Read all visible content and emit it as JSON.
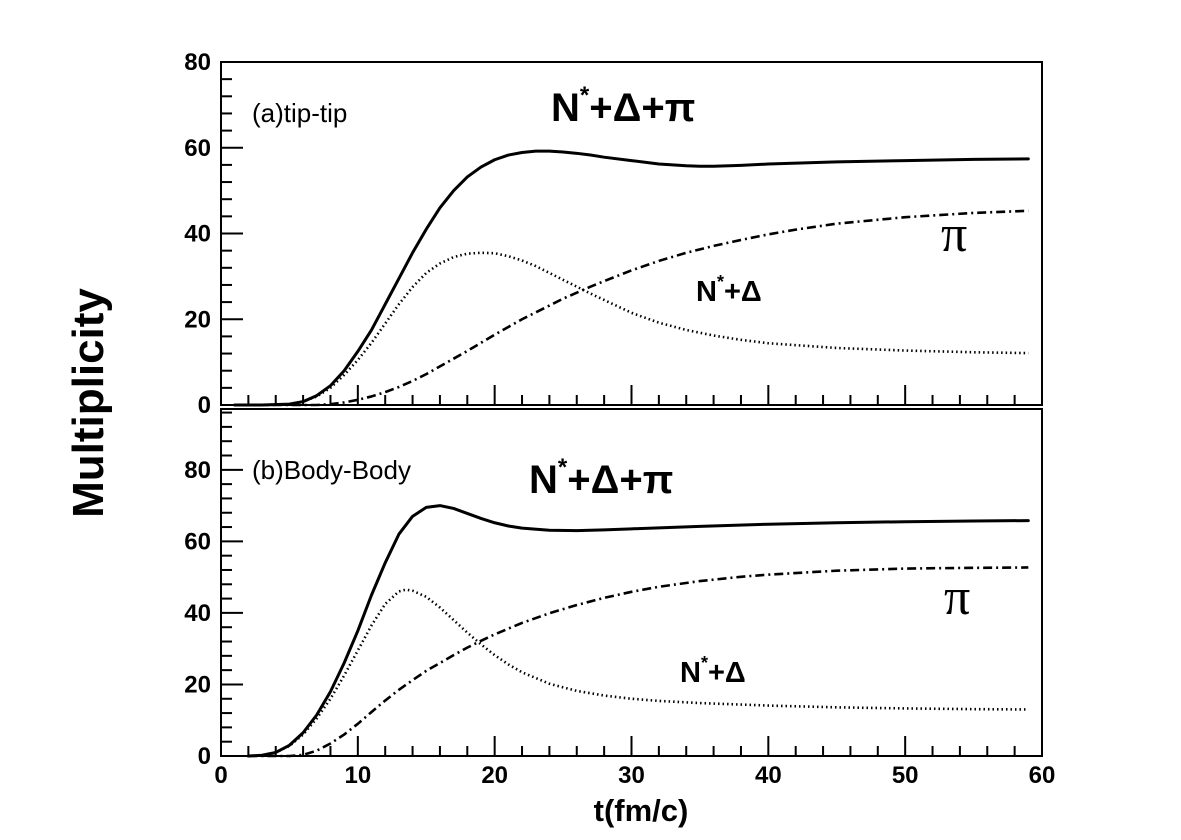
{
  "chart_data": {
    "type": "line",
    "ylabel": "Multiplicity",
    "xlabel": "t(fm/c)",
    "xlim": [
      0,
      60
    ],
    "x_ticks": [
      "0",
      "10",
      "20",
      "30",
      "40",
      "50",
      "60"
    ],
    "style": {
      "line_color": "#000000",
      "series_dash": {
        "N*+Δ+π": "solid",
        "N*+Δ": "dotted",
        "π": "dash-dot"
      }
    },
    "panels": [
      {
        "label": "(a)tip-tip",
        "ylim": [
          0,
          80
        ],
        "y_ticks": [
          "0",
          "20",
          "40",
          "60",
          "80"
        ],
        "annotations": [
          {
            "base": "N",
            "sup": "*",
            "rest": "+Δ+π",
            "series": "N*+Δ+π"
          },
          {
            "base": "N",
            "sup": "*",
            "rest": "+Δ",
            "series": "N*+Δ"
          },
          {
            "text": "π",
            "series": "π"
          }
        ],
        "series": [
          {
            "name": "N*+Δ+π",
            "x": [
              1,
              3,
              5,
              6,
              7,
              8,
              9,
              10,
              11,
              12,
              13,
              14,
              15,
              16,
              17,
              18,
              19,
              20,
              21,
              22,
              23,
              24,
              25,
              26,
              27,
              28,
              30,
              32,
              34,
              35,
              36,
              38,
              40,
              45,
              50,
              55,
              59
            ],
            "y": [
              0,
              0,
              0.2,
              0.8,
              2.2,
              4.5,
              8,
              12.5,
              17.5,
              23.5,
              29.5,
              35.5,
              41,
              46,
              50,
              53.2,
              55.5,
              57.2,
              58.3,
              58.9,
              59.2,
              59.2,
              59,
              58.7,
              58.3,
              57.8,
              57,
              56.2,
              55.8,
              55.7,
              55.7,
              55.9,
              56.2,
              56.7,
              57,
              57.3,
              57.4
            ]
          },
          {
            "name": "N*+Δ",
            "x": [
              1,
              3,
              5,
              6,
              7,
              8,
              9,
              10,
              11,
              12,
              13,
              14,
              15,
              16,
              17,
              18,
              19,
              20,
              21,
              22,
              23,
              24,
              25,
              26,
              27,
              28,
              30,
              32,
              34,
              36,
              38,
              40,
              45,
              50,
              55,
              59
            ],
            "y": [
              0,
              0,
              0.2,
              0.8,
              2,
              4,
              7,
              10.5,
              14.5,
              19,
              23.5,
              27.5,
              30.8,
              33,
              34.5,
              35.3,
              35.5,
              35.4,
              34.7,
              33.7,
              32.4,
              30.8,
              29.2,
              27.6,
              26,
              24.5,
              21.5,
              19.2,
              17.5,
              16.2,
              15.2,
              14.4,
              13.3,
              12.7,
              12.3,
              12.1
            ]
          },
          {
            "name": "π",
            "x": [
              1,
              3,
              5,
              6,
              7,
              8,
              9,
              10,
              11,
              12,
              13,
              14,
              15,
              16,
              17,
              18,
              19,
              20,
              21,
              22,
              23,
              24,
              25,
              26,
              27,
              28,
              30,
              32,
              34,
              36,
              38,
              40,
              42,
              45,
              50,
              55,
              59
            ],
            "y": [
              0,
              0,
              0,
              0,
              0,
              0.2,
              0.6,
              1.2,
              2,
              3,
              4.2,
              5.6,
              7.2,
              9,
              10.8,
              12.6,
              14.5,
              16.4,
              18.2,
              20,
              21.6,
              23.2,
              24.8,
              26.2,
              27.6,
              28.9,
              31.4,
              33.6,
              35.5,
              37.1,
              38.5,
              39.8,
              40.9,
              42.3,
              43.8,
              44.8,
              45.3
            ]
          }
        ]
      },
      {
        "label": "(b)Body-Body",
        "ylim": [
          0,
          97
        ],
        "y_ticks": [
          "0",
          "20",
          "40",
          "60",
          "80"
        ],
        "annotations": [
          {
            "base": "N",
            "sup": "*",
            "rest": "+Δ+π",
            "series": "N*+Δ+π"
          },
          {
            "base": "N",
            "sup": "*",
            "rest": "+Δ",
            "series": "N*+Δ"
          },
          {
            "text": "π",
            "series": "π"
          }
        ],
        "series": [
          {
            "name": "N*+Δ+π",
            "x": [
              2,
              3,
              4,
              5,
              6,
              7,
              8,
              9,
              10,
              11,
              12,
              13,
              14,
              15,
              16,
              17,
              18,
              19,
              20,
              21,
              22,
              24,
              26,
              28,
              30,
              35,
              40,
              45,
              50,
              55,
              59
            ],
            "y": [
              0,
              0.2,
              1,
              3,
              6.5,
              11.5,
              18,
              26,
              35,
              45,
              54,
              62,
              67,
              69.5,
              70,
              69.2,
              67.8,
              66.4,
              65.2,
              64.3,
              63.7,
              63.1,
              63,
              63.2,
              63.5,
              64.2,
              64.8,
              65.2,
              65.5,
              65.7,
              65.8
            ]
          },
          {
            "name": "N*+Δ",
            "x": [
              2,
              3,
              4,
              5,
              6,
              7,
              8,
              9,
              10,
              11,
              12,
              13,
              13.5,
              14,
              15,
              16,
              17,
              18,
              19,
              20,
              21,
              22,
              24,
              26,
              28,
              30,
              32,
              35,
              40,
              45,
              50,
              55,
              59
            ],
            "y": [
              0,
              0.2,
              1,
              2.8,
              6,
              10.5,
              16,
              22.5,
              29.5,
              36.5,
              42.5,
              46,
              46.5,
              46.2,
              44.5,
              41.5,
              38,
              34.5,
              31.2,
              28.2,
              25.6,
              23.4,
              20.2,
              18.2,
              16.9,
              16,
              15.4,
              14.8,
              14.1,
              13.6,
              13.3,
              13.1,
              13
            ]
          },
          {
            "name": "π",
            "x": [
              2,
              4,
              5,
              6,
              7,
              8,
              9,
              10,
              11,
              12,
              13,
              14,
              15,
              16,
              17,
              18,
              19,
              20,
              22,
              24,
              26,
              28,
              30,
              32,
              35,
              38,
              40,
              45,
              50,
              55,
              59
            ],
            "y": [
              0,
              0,
              0,
              0.3,
              1.5,
              3.5,
              6,
              9,
              12.3,
              15.5,
              18.5,
              21.2,
              23.8,
              26,
              28.2,
              30.3,
              32.2,
              34,
              37.2,
              39.9,
              42.2,
              44.2,
              45.9,
              47.3,
              48.9,
              50.1,
              50.7,
              51.8,
              52.4,
              52.6,
              52.7
            ]
          }
        ]
      }
    ]
  }
}
